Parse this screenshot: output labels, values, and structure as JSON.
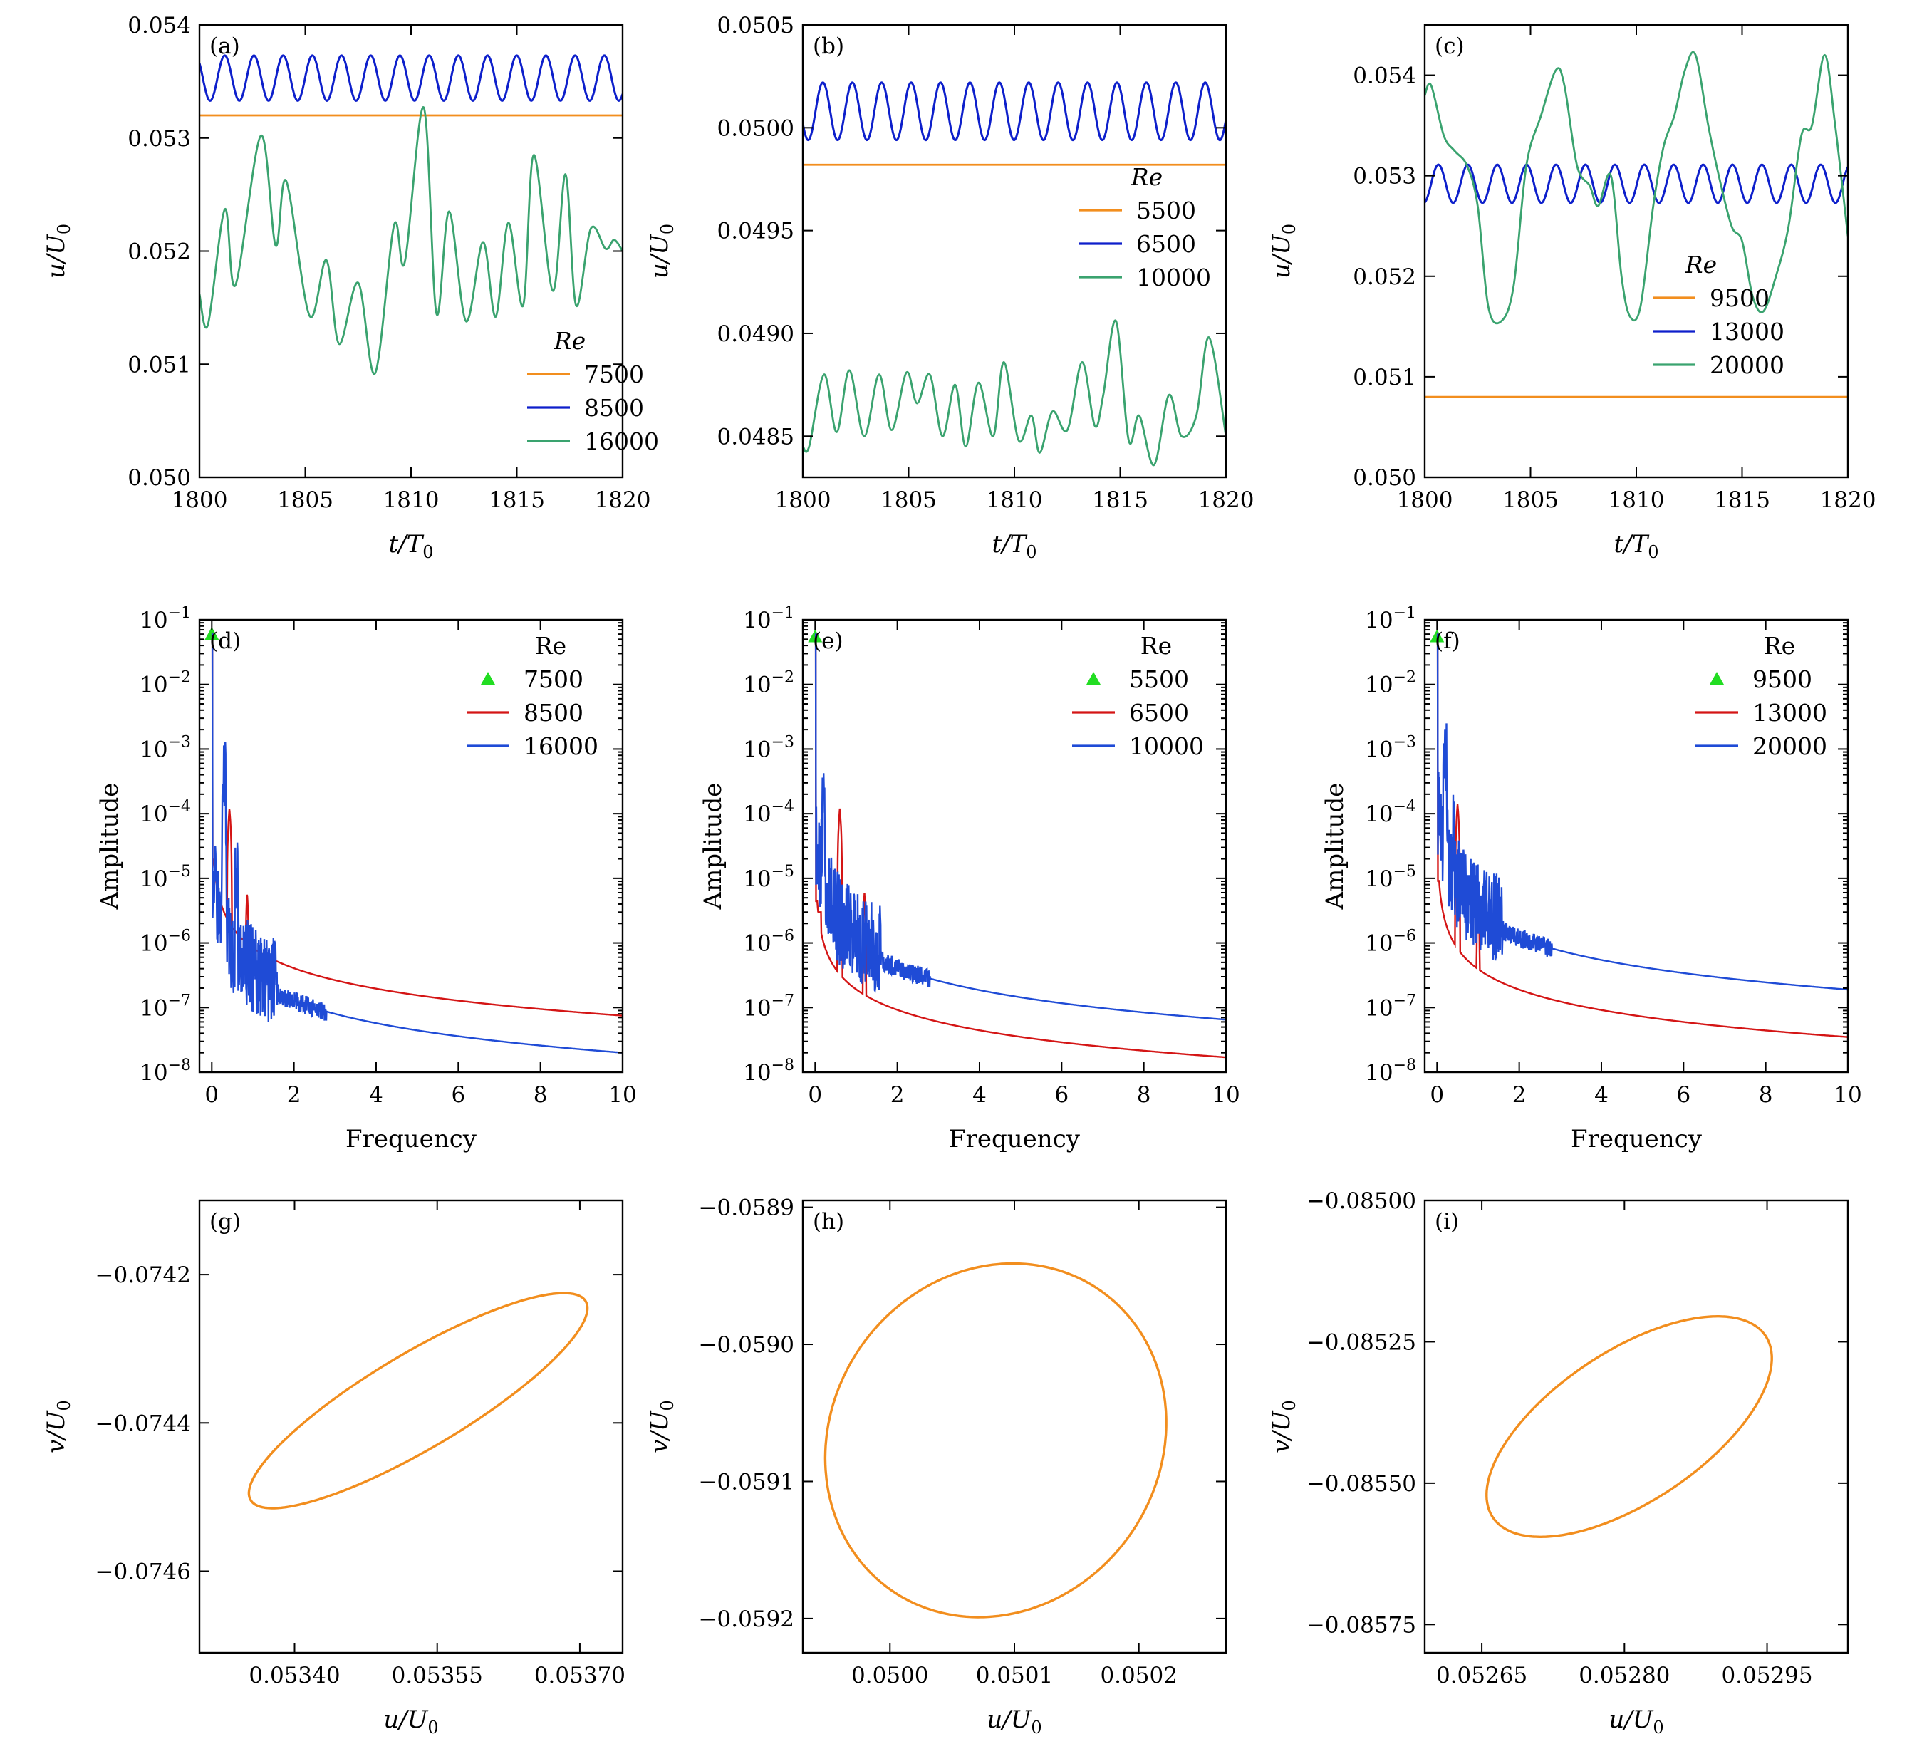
{
  "colors": {
    "orange": "#f28e1e",
    "navy": "#0d1fcb",
    "green": "#3aa36f",
    "red": "#d41515",
    "blue": "#1f4bd6",
    "lime": "#22dd22"
  },
  "chart_data": [
    {
      "id": "a",
      "panel_label": "(a)",
      "type": "line",
      "xlim": [
        1800,
        1820
      ],
      "ylim": [
        0.05,
        0.054
      ],
      "xticks": [
        "1800",
        "1805",
        "1810",
        "1815",
        "1820"
      ],
      "yticks": [
        "0.050",
        "0.051",
        "0.052",
        "0.053",
        "0.054"
      ],
      "xlabel": "t/T0",
      "ylabel": "u/U0",
      "legend_title": "Re",
      "legend_position": "lower-right",
      "series": [
        {
          "name": "7500",
          "color": "orange",
          "kind": "const",
          "value": 0.0532
        },
        {
          "name": "8500",
          "color": "navy",
          "kind": "sine",
          "mean": 0.05353,
          "amp": 0.0002,
          "period": 1.38,
          "phase": 1800.85
        },
        {
          "name": "16000",
          "color": "green",
          "kind": "points",
          "x": [
            1800,
            1800.4,
            1801.2,
            1801.7,
            1802.9,
            1803.6,
            1804.1,
            1805.2,
            1806.0,
            1806.6,
            1807.5,
            1808.3,
            1809.2,
            1809.7,
            1810.6,
            1811.2,
            1811.8,
            1812.6,
            1813.4,
            1814.0,
            1814.6,
            1815.3,
            1815.8,
            1816.7,
            1817.3,
            1817.8,
            1818.5,
            1819.2,
            1819.6,
            1820
          ],
          "y": [
            0.05162,
            0.05135,
            0.05237,
            0.0517,
            0.05302,
            0.05205,
            0.05262,
            0.05143,
            0.05192,
            0.05118,
            0.05172,
            0.05092,
            0.05223,
            0.0519,
            0.05327,
            0.05145,
            0.05235,
            0.05138,
            0.05208,
            0.05142,
            0.05225,
            0.05152,
            0.05285,
            0.05165,
            0.05268,
            0.05152,
            0.0522,
            0.05202,
            0.0521,
            0.052
          ]
        }
      ]
    },
    {
      "id": "b",
      "panel_label": "(b)",
      "type": "line",
      "xlim": [
        1800,
        1820
      ],
      "ylim": [
        0.0483,
        0.0505
      ],
      "xticks": [
        "1800",
        "1805",
        "1810",
        "1815",
        "1820"
      ],
      "yticks": [
        "0.0485",
        "0.0490",
        "0.0495",
        "0.0500",
        "0.0505"
      ],
      "xlabel": "t/T0",
      "ylabel": "u/U0",
      "legend_title": "Re",
      "legend_position": "right",
      "series": [
        {
          "name": "5500",
          "color": "orange",
          "kind": "const",
          "value": 0.04982
        },
        {
          "name": "6500",
          "color": "navy",
          "kind": "sine",
          "mean": 0.05008,
          "amp": 0.00014,
          "period": 1.39,
          "phase": 1800.6
        },
        {
          "name": "10000",
          "color": "green",
          "kind": "points",
          "x": [
            1800,
            1800.3,
            1801.0,
            1801.6,
            1802.2,
            1802.9,
            1803.6,
            1804.2,
            1804.9,
            1805.4,
            1806.0,
            1806.6,
            1807.2,
            1807.7,
            1808.3,
            1809.0,
            1809.5,
            1810.2,
            1810.8,
            1811.2,
            1811.8,
            1812.5,
            1813.2,
            1813.8,
            1814.2,
            1814.8,
            1815.4,
            1815.9,
            1816.6,
            1817.3,
            1817.9,
            1818.6,
            1819.2,
            1820
          ],
          "y": [
            0.04845,
            0.04845,
            0.0488,
            0.04852,
            0.04882,
            0.0485,
            0.0488,
            0.04853,
            0.04881,
            0.04866,
            0.0488,
            0.0485,
            0.04875,
            0.04845,
            0.04876,
            0.0485,
            0.04886,
            0.04848,
            0.0486,
            0.04842,
            0.04862,
            0.04853,
            0.04886,
            0.04855,
            0.0487,
            0.04906,
            0.04848,
            0.0486,
            0.04836,
            0.0487,
            0.0485,
            0.0486,
            0.04898,
            0.0485
          ]
        }
      ]
    },
    {
      "id": "c",
      "panel_label": "(c)",
      "type": "line",
      "xlim": [
        1800,
        1820
      ],
      "ylim": [
        0.05,
        0.0545
      ],
      "xticks": [
        "1800",
        "1805",
        "1810",
        "1815",
        "1820"
      ],
      "yticks": [
        "0.050",
        "0.051",
        "0.052",
        "0.053",
        "0.054"
      ],
      "xlabel": "t/T0",
      "ylabel": "u/U0",
      "legend_title": "Re",
      "legend_position": "right",
      "series": [
        {
          "name": "9500",
          "color": "orange",
          "kind": "const",
          "value": 0.0508
        },
        {
          "name": "13000",
          "color": "navy",
          "kind": "sine",
          "mean": 0.05292,
          "amp": 0.00019,
          "period": 1.39,
          "phase": 1800.3
        },
        {
          "name": "20000",
          "color": "green",
          "kind": "points",
          "x": [
            1800,
            1800.3,
            1800.9,
            1801.4,
            1802.0,
            1802.5,
            1803.0,
            1803.6,
            1804.2,
            1804.8,
            1805.5,
            1806.2,
            1806.6,
            1807.2,
            1807.8,
            1808.2,
            1808.8,
            1809.3,
            1809.7,
            1810.2,
            1810.8,
            1811.3,
            1811.8,
            1812.3,
            1812.8,
            1813.4,
            1813.9,
            1814.5,
            1815.0,
            1815.5,
            1816.0,
            1816.6,
            1817.2,
            1817.8,
            1818.3,
            1818.9,
            1819.4,
            1820
          ],
          "y": [
            0.0538,
            0.0539,
            0.0534,
            0.05325,
            0.0531,
            0.0527,
            0.0517,
            0.05155,
            0.0519,
            0.0531,
            0.0536,
            0.05405,
            0.0539,
            0.0531,
            0.0529,
            0.0527,
            0.053,
            0.052,
            0.0516,
            0.0517,
            0.0527,
            0.0533,
            0.0536,
            0.05405,
            0.0542,
            0.0535,
            0.053,
            0.0525,
            0.05235,
            0.0518,
            0.05165,
            0.052,
            0.0525,
            0.0534,
            0.0535,
            0.0542,
            0.0535,
            0.0524
          ]
        }
      ]
    },
    {
      "id": "d",
      "panel_label": "(d)",
      "type": "line",
      "yscale": "log",
      "xlim": [
        -0.3,
        10
      ],
      "ylim": [
        1e-08,
        0.1
      ],
      "xticks": [
        "0",
        "2",
        "4",
        "6",
        "8",
        "10"
      ],
      "yticks": [
        "10^-8",
        "10^-7",
        "10^-6",
        "10^-5",
        "10^-4",
        "10^-3",
        "10^-2",
        "10^-1"
      ],
      "xlabel": "Frequency",
      "ylabel": "Amplitude",
      "legend_title": "Re",
      "legend_position": "top-right",
      "series": [
        {
          "name": "7500",
          "color": "lime",
          "kind": "marker",
          "x": [
            0
          ],
          "y": [
            0.06
          ]
        },
        {
          "name": "8500",
          "color": "red",
          "kind": "spectrum",
          "f0": 0.43,
          "peak": 0.00012,
          "tail": 7.5e-08,
          "noise": 0
        },
        {
          "name": "16000",
          "color": "blue",
          "kind": "spectrum",
          "f0": 0.3,
          "peak": 0.0004,
          "tail": 2e-08,
          "noise": 1
        }
      ]
    },
    {
      "id": "e",
      "panel_label": "(e)",
      "type": "line",
      "yscale": "log",
      "xlim": [
        -0.3,
        10
      ],
      "ylim": [
        1e-08,
        0.1
      ],
      "xticks": [
        "0",
        "2",
        "4",
        "6",
        "8",
        "10"
      ],
      "yticks": [
        "10^-8",
        "10^-7",
        "10^-6",
        "10^-5",
        "10^-4",
        "10^-3",
        "10^-2",
        "10^-1"
      ],
      "xlabel": "Frequency",
      "ylabel": "Amplitude",
      "legend_title": "Re",
      "legend_position": "top-right",
      "series": [
        {
          "name": "5500",
          "color": "lime",
          "kind": "marker",
          "x": [
            0
          ],
          "y": [
            0.055
          ]
        },
        {
          "name": "6500",
          "color": "red",
          "kind": "spectrum",
          "f0": 0.6,
          "peak": 0.00012,
          "tail": 1.7e-08,
          "noise": 0
        },
        {
          "name": "10000",
          "color": "blue",
          "kind": "spectrum",
          "f0": 0.2,
          "peak": 0.0001,
          "tail": 6.5e-08,
          "noise": 1
        }
      ]
    },
    {
      "id": "f",
      "panel_label": "(f)",
      "type": "line",
      "yscale": "log",
      "xlim": [
        -0.3,
        10
      ],
      "ylim": [
        1e-08,
        0.1
      ],
      "xticks": [
        "0",
        "2",
        "4",
        "6",
        "8",
        "10"
      ],
      "yticks": [
        "10^-8",
        "10^-7",
        "10^-6",
        "10^-5",
        "10^-4",
        "10^-3",
        "10^-2",
        "10^-1"
      ],
      "xlabel": "Frequency",
      "ylabel": "Amplitude",
      "legend_title": "Re",
      "legend_position": "top-right",
      "series": [
        {
          "name": "9500",
          "color": "lime",
          "kind": "marker",
          "x": [
            0
          ],
          "y": [
            0.055
          ]
        },
        {
          "name": "13000",
          "color": "red",
          "kind": "spectrum",
          "f0": 0.5,
          "peak": 0.00014,
          "tail": 3.5e-08,
          "noise": 0
        },
        {
          "name": "20000",
          "color": "blue",
          "kind": "spectrum",
          "f0": 0.2,
          "peak": 0.0007,
          "tail": 1.9e-07,
          "noise": 1
        }
      ]
    },
    {
      "id": "g",
      "panel_label": "(g)",
      "type": "scatter",
      "xlim": [
        0.0533,
        0.053745
      ],
      "ylim": [
        -0.07471,
        -0.0741
      ],
      "xticks": [
        "0.05340",
        "0.05355",
        "0.05370"
      ],
      "xtick_values": [
        0.0534,
        0.05355,
        0.0537
      ],
      "yticks": [
        "−0.0742",
        "−0.0744",
        "−0.0746"
      ],
      "ytick_values": [
        -0.0742,
        -0.0744,
        -0.0746
      ],
      "xlabel": "u/U0",
      "ylabel": "v/U0",
      "series": [
        {
          "name": "",
          "color": "orange",
          "kind": "ellipse",
          "cx": 0.05353,
          "cy": -0.07437,
          "a": 0.000178,
          "b": 0.000145,
          "rho": 0.86
        }
      ]
    },
    {
      "id": "h",
      "panel_label": "(h)",
      "type": "scatter",
      "xlim": [
        0.04993,
        0.05027
      ],
      "ylim": [
        -0.059225,
        -0.058895
      ],
      "xticks": [
        "0.0500",
        "0.0501",
        "0.0502"
      ],
      "xtick_values": [
        0.05,
        0.0501,
        0.0502
      ],
      "yticks": [
        "−0.0589",
        "−0.0590",
        "−0.0591",
        "−0.0592"
      ],
      "ytick_values": [
        -0.0589,
        -0.059,
        -0.0591,
        -0.0592
      ],
      "xlabel": "u/U0",
      "ylabel": "v/U0",
      "series": [
        {
          "name": "",
          "color": "orange",
          "kind": "ellipse",
          "cx": 0.050085,
          "cy": -0.05907,
          "a": 0.000137,
          "b": 0.000129,
          "rho": 0.1
        }
      ]
    },
    {
      "id": "i",
      "panel_label": "(i)",
      "type": "scatter",
      "xlim": [
        0.05259,
        0.053035
      ],
      "ylim": [
        -0.0858,
        -0.085
      ],
      "xticks": [
        "0.05265",
        "0.05280",
        "0.05295"
      ],
      "xtick_values": [
        0.05265,
        0.0528,
        0.05295
      ],
      "yticks": [
        "−0.08500",
        "−0.08525",
        "−0.08550",
        "−0.08575"
      ],
      "ytick_values": [
        -0.085,
        -0.08525,
        -0.0855,
        -0.08575
      ],
      "xlabel": "u/U0",
      "ylabel": "v/U0",
      "series": [
        {
          "name": "",
          "color": "orange",
          "kind": "ellipse",
          "cx": 0.052805,
          "cy": -0.0854,
          "a": 0.00015,
          "b": 0.000195,
          "rho": 0.62
        }
      ]
    }
  ]
}
